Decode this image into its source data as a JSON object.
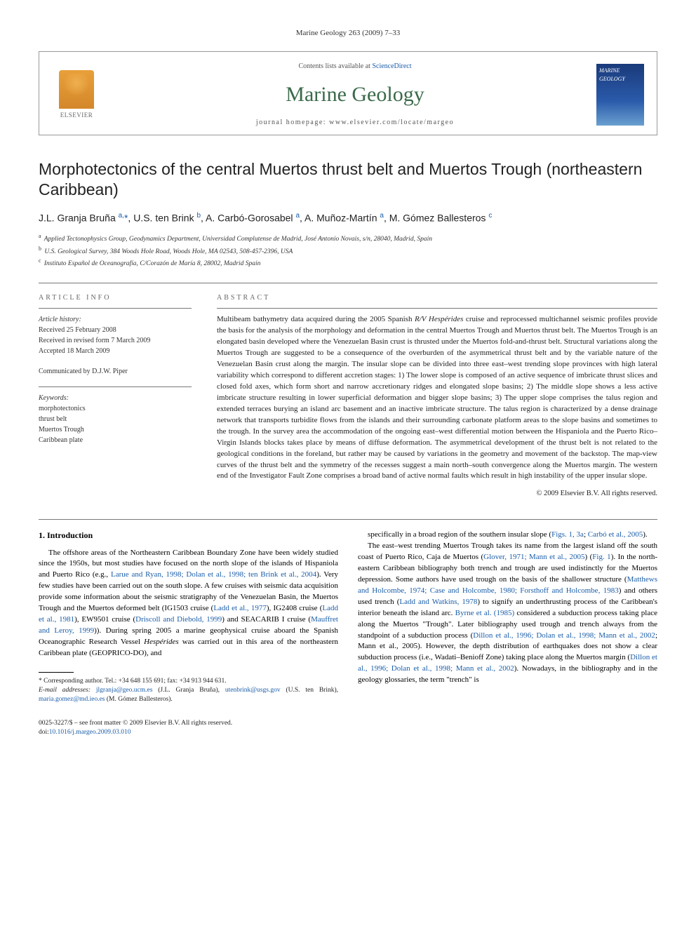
{
  "running_header": "Marine Geology 263 (2009) 7–33",
  "masthead": {
    "publisher_name": "ELSEVIER",
    "contents_prefix": "Contents lists available at ",
    "contents_link": "ScienceDirect",
    "journal": "Marine Geology",
    "homepage_prefix": "journal homepage: ",
    "homepage_url": "www.elsevier.com/locate/margeo",
    "cover_label_top": "MARINE",
    "cover_label_bottom": "GEOLOGY"
  },
  "title": "Morphotectonics of the central Muertos thrust belt and Muertos Trough (northeastern Caribbean)",
  "authors_html": "J.L. Granja Bruña <sup>a,</sup><span class='corr'>*</span>, U.S. ten Brink <sup>b</sup>, A. Carbó-Gorosabel <sup>a</sup>, A. Muñoz-Martín <sup>a</sup>, M. Gómez Ballesteros <sup>c</sup>",
  "affiliations": [
    {
      "sup": "a",
      "text": "Applied Tectonophysics Group, Geodynamics Department, Universidad Complutense de Madrid, José Antonio Novais, s/n, 28040, Madrid, Spain"
    },
    {
      "sup": "b",
      "text": "U.S. Geological Survey, 384 Woods Hole Road, Woods Hole, MA 02543, 508-457-2396, USA"
    },
    {
      "sup": "c",
      "text": "Instituto Español de Oceanografía, C/Corazón de María 8, 28002, Madrid Spain"
    }
  ],
  "info": {
    "heading": "ARTICLE INFO",
    "history_label": "Article history:",
    "history": [
      "Received 25 February 2008",
      "Received in revised form 7 March 2009",
      "Accepted 18 March 2009"
    ],
    "communicated": "Communicated by D.J.W. Piper",
    "keywords_label": "Keywords:",
    "keywords": [
      "morphotectonics",
      "thrust belt",
      "Muertos Trough",
      "Caribbean plate"
    ]
  },
  "abstract": {
    "heading": "ABSTRACT",
    "text": "Multibeam bathymetry data acquired during the 2005 Spanish R/V Hespérides cruise and reprocessed multichannel seismic profiles provide the basis for the analysis of the morphology and deformation in the central Muertos Trough and Muertos thrust belt. The Muertos Trough is an elongated basin developed where the Venezuelan Basin crust is thrusted under the Muertos fold-and-thrust belt. Structural variations along the Muertos Trough are suggested to be a consequence of the overburden of the asymmetrical thrust belt and by the variable nature of the Venezuelan Basin crust along the margin. The insular slope can be divided into three east–west trending slope provinces with high lateral variability which correspond to different accretion stages: 1) The lower slope is composed of an active sequence of imbricate thrust slices and closed fold axes, which form short and narrow accretionary ridges and elongated slope basins; 2) The middle slope shows a less active imbricate structure resulting in lower superficial deformation and bigger slope basins; 3) The upper slope comprises the talus region and extended terraces burying an island arc basement and an inactive imbricate structure. The talus region is characterized by a dense drainage network that transports turbidite flows from the islands and their surrounding carbonate platform areas to the slope basins and sometimes to the trough. In the survey area the accommodation of the ongoing east–west differential motion between the Hispaniola and the Puerto Rico–Virgin Islands blocks takes place by means of diffuse deformation. The asymmetrical development of the thrust belt is not related to the geological conditions in the foreland, but rather may be caused by variations in the geometry and movement of the backstop. The map-view curves of the thrust belt and the symmetry of the recesses suggest a main north–south convergence along the Muertos margin. The western end of the Investigator Fault Zone comprises a broad band of active normal faults which result in high instability of the upper insular slope.",
    "copyright": "© 2009 Elsevier B.V. All rights reserved."
  },
  "body": {
    "section_heading": "1. Introduction",
    "p1": "The offshore areas of the Northeastern Caribbean Boundary Zone have been widely studied since the 1950s, but most studies have focused on the north slope of the islands of Hispaniola and Puerto Rico (e.g., Larue and Ryan, 1998; Dolan et al., 1998; ten Brink et al., 2004). Very few studies have been carried out on the south slope. A few cruises with seismic data acquisition provide some information about the seismic stratigraphy of the Venezuelan Basin, the Muertos Trough and the Muertos deformed belt (IG1503 cruise (Ladd et al., 1977), IG2408 cruise (Ladd et al., 1981), EW9501 cruise (Driscoll and Diebold, 1999) and SEACARIB I cruise (Mauffret and Leroy, 1999)). During spring 2005 a marine geophysical cruise aboard the Spanish Oceanographic Research Vessel Hespérides was carried out in this area of the northeastern Caribbean plate (GEOPRICO-DO), and",
    "p2": "specifically in a broad region of the southern insular slope (Figs. 1, 3a; Carbó et al., 2005).",
    "p3": "The east–west trending Muertos Trough takes its name from the largest island off the south coast of Puerto Rico, Caja de Muertos (Glover, 1971; Mann et al., 2005) (Fig. 1). In the north-eastern Caribbean bibliography both trench and trough are used indistinctly for the Muertos depression. Some authors have used trough on the basis of the shallower structure (Matthews and Holcombe, 1974; Case and Holcombe, 1980; Forsthoff and Holcombe, 1983) and others used trench (Ladd and Watkins, 1978) to signify an underthrusting process of the Caribbean's interior beneath the island arc. Byrne et al. (1985) considered a subduction process taking place along the Muertos \"Trough\". Later bibliography used trough and trench always from the standpoint of a subduction process (Dillon et al., 1996; Dolan et al., 1998; Mann et al., 2002; Mann et al., 2005). However, the depth distribution of earthquakes does not show a clear subduction process (i.e., Wadati–Benioff Zone) taking place along the Muertos margin (Dillon et al., 1996; Dolan et al., 1998; Mann et al., 2002). Nowadays, in the bibliography and in the geology glossaries, the term \"trench\" is"
  },
  "refs": {
    "larue_ryan_1998": "Larue and Ryan, 1998; Dolan et al., 1998; ten Brink et al., 2004",
    "ladd_1977": "Ladd et al., 1977",
    "ladd_1981": "Ladd et al., 1981",
    "driscoll_1999": "Driscoll and Diebold, 1999",
    "mauffret_1999": "Mauffret and Leroy, 1999",
    "figs_1_3a": "Figs. 1, 3a",
    "carbo_2005": "Carbó et al., 2005",
    "glover_mann": "Glover, 1971; Mann et al., 2005",
    "fig_1": "Fig. 1",
    "matthews_etc": "Matthews and Holcombe, 1974; Case and Holcombe, 1980; Forsthoff and Holcombe, 1983",
    "ladd_watkins": "Ladd and Watkins, 1978",
    "byrne_1985": "Byrne et al. (1985)",
    "dillon_etc": "Dillon et al., 1996; Dolan et al., 1998; Mann et al., 2002; Mann et al., 2005",
    "dillon_etc2": "Dillon et al., 1996; Dolan et al., 1998; Mann et al., 2002"
  },
  "footnotes": {
    "corr_label": "* Corresponding author. Tel.: +34 648 155 691; fax: +34 913 944 631.",
    "email_label": "E-mail addresses:",
    "emails": [
      {
        "addr": "jlgranja@geo.ucm.es",
        "who": "(J.L. Granja Bruña),"
      },
      {
        "addr": "utenbrink@usgs.gov",
        "who": "(U.S. ten Brink),"
      },
      {
        "addr": "maria.gomez@md.ieo.es",
        "who": "(M. Gómez Ballesteros)."
      }
    ]
  },
  "bottom": {
    "issn_line": "0025-3227/$ – see front matter © 2009 Elsevier B.V. All rights reserved.",
    "doi_prefix": "doi:",
    "doi": "10.1016/j.margeo.2009.03.010"
  },
  "colors": {
    "link": "#1a5da8",
    "journal_green": "#3a6a4a",
    "logo_orange": "#e8a03a",
    "cover_blue": "#1a3a7a"
  }
}
